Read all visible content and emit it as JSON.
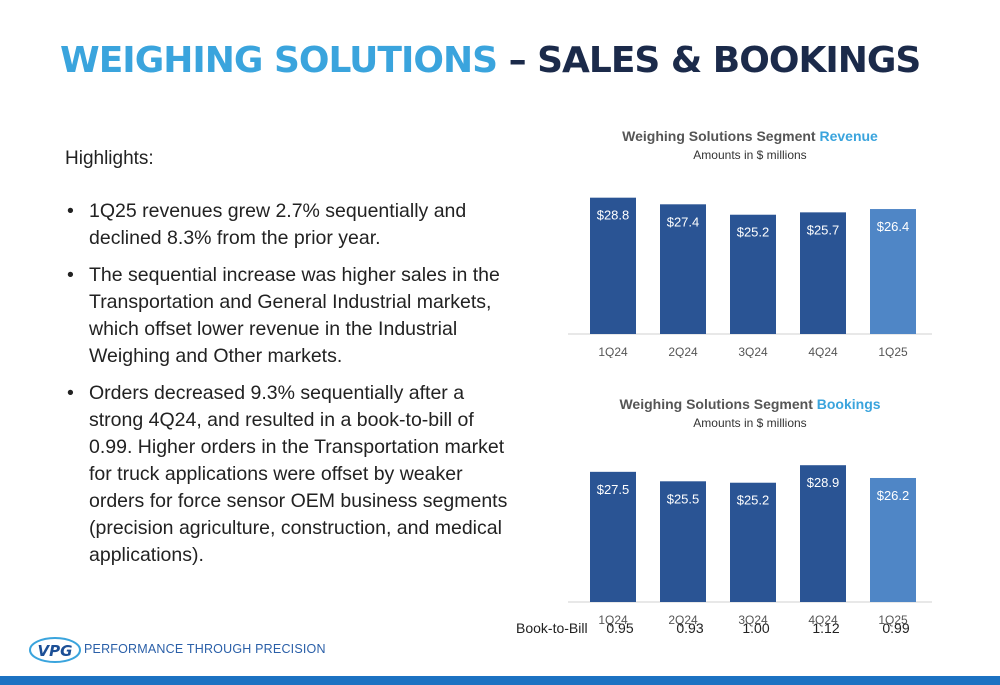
{
  "title": {
    "part1": "WEIGHING SOLUTIONS",
    "part2": "– SALES & BOOKINGS"
  },
  "highlights_label": "Highlights:",
  "bullets": [
    "1Q25 revenues grew 2.7% sequentially and declined 8.3% from the prior year.",
    "The sequential increase was higher sales in the Transportation and General Industrial markets, which offset lower revenue in the Industrial Weighing and Other markets.",
    "Orders decreased 9.3% sequentially after a strong 4Q24, and resulted in a book-to-bill of 0.99. Higher orders in the Transportation market for truck applications were offset by weaker orders for force sensor OEM business segments (precision agriculture, construction, and medical applications)."
  ],
  "chart_data": [
    {
      "type": "bar",
      "title_prefix": "Weighing Solutions Segment ",
      "title_accent": "Revenue",
      "subtitle": "Amounts in $ millions",
      "categories": [
        "1Q24",
        "2Q24",
        "3Q24",
        "4Q24",
        "1Q25"
      ],
      "values": [
        28.8,
        27.4,
        25.2,
        25.7,
        26.4
      ],
      "labels": [
        "$28.8",
        "$27.4",
        "$25.2",
        "$25.7",
        "$26.4"
      ],
      "colors": [
        "#2a5494",
        "#2a5494",
        "#2a5494",
        "#2a5494",
        "#4f86c6"
      ],
      "ylim": [
        0,
        30
      ]
    },
    {
      "type": "bar",
      "title_prefix": "Weighing Solutions Segment ",
      "title_accent": "Bookings",
      "subtitle": "Amounts in $ millions",
      "categories": [
        "1Q24",
        "2Q24",
        "3Q24",
        "4Q24",
        "1Q25"
      ],
      "values": [
        27.5,
        25.5,
        25.2,
        28.9,
        26.2
      ],
      "labels": [
        "$27.5",
        "$25.5",
        "$25.2",
        "$28.9",
        "$26.2"
      ],
      "colors": [
        "#2a5494",
        "#2a5494",
        "#2a5494",
        "#2a5494",
        "#4f86c6"
      ],
      "ylim": [
        0,
        30
      ]
    }
  ],
  "book_to_bill": {
    "label": "Book-to-Bill",
    "values": [
      "0.95",
      "0.93",
      "1.00",
      "1.12",
      "0.99"
    ]
  },
  "footer": {
    "logo_text": "VPG",
    "tagline": "PERFORMANCE THROUGH PRECISION"
  },
  "colors": {
    "accent": "#3aa4dd",
    "navy": "#1b2a4a",
    "bar": "#2a5494",
    "bar_highlight": "#4f86c6",
    "footer": "#1c72c2"
  }
}
